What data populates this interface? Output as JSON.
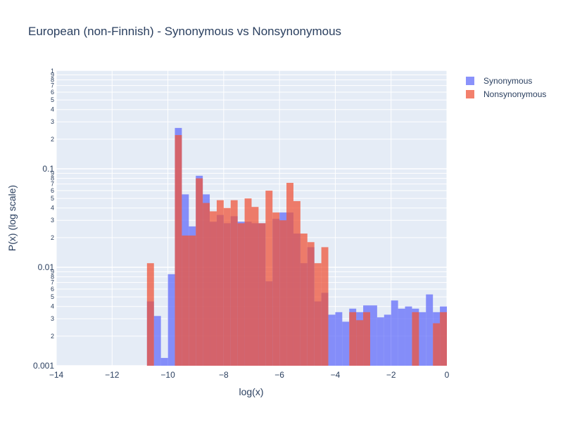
{
  "chart_data": {
    "type": "bar",
    "title": "European (non-Finnish) - Synonymous vs Nonsynonymous",
    "xlabel": "log(x)",
    "ylabel": "P(x) (log scale)",
    "xlim": [
      -14,
      0
    ],
    "ylim": [
      0.001,
      1
    ],
    "y_scale": "log",
    "bin_width": 0.25,
    "x_ticks": [
      -14,
      -12,
      -10,
      -8,
      -6,
      -4,
      -2,
      0
    ],
    "x_tick_labels": [
      "−14",
      "−12",
      "−10",
      "−8",
      "−6",
      "−4",
      "−2",
      "0"
    ],
    "y_major_ticks": [
      {
        "value": 0.001,
        "label": "0.001"
      },
      {
        "value": 0.01,
        "label": "0.01"
      },
      {
        "value": 0.1,
        "label": "0.1"
      },
      {
        "value": 1,
        "label": "1"
      }
    ],
    "y_minor_ticks": [
      {
        "value": 0.002,
        "label": "2"
      },
      {
        "value": 0.003,
        "label": "3"
      },
      {
        "value": 0.004,
        "label": "4"
      },
      {
        "value": 0.005,
        "label": "5"
      },
      {
        "value": 0.006,
        "label": "6"
      },
      {
        "value": 0.007,
        "label": "7"
      },
      {
        "value": 0.008,
        "label": "8"
      },
      {
        "value": 0.009,
        "label": "9"
      },
      {
        "value": 0.02,
        "label": "2"
      },
      {
        "value": 0.03,
        "label": "3"
      },
      {
        "value": 0.04,
        "label": "4"
      },
      {
        "value": 0.05,
        "label": "5"
      },
      {
        "value": 0.06,
        "label": "6"
      },
      {
        "value": 0.07,
        "label": "7"
      },
      {
        "value": 0.08,
        "label": "8"
      },
      {
        "value": 0.09,
        "label": "9"
      },
      {
        "value": 0.2,
        "label": "2"
      },
      {
        "value": 0.3,
        "label": "3"
      },
      {
        "value": 0.4,
        "label": "4"
      },
      {
        "value": 0.5,
        "label": "5"
      },
      {
        "value": 0.6,
        "label": "6"
      },
      {
        "value": 0.7,
        "label": "7"
      },
      {
        "value": 0.8,
        "label": "8"
      },
      {
        "value": 0.9,
        "label": "9"
      }
    ],
    "legend_position": "top-right",
    "grid": true,
    "series": [
      {
        "name": "Synonymous",
        "color": "#636efa",
        "opacity": 0.75,
        "bins": [
          [
            -10.75,
            0.0045
          ],
          [
            -10.5,
            0.0032
          ],
          [
            -10.25,
            0.0012
          ],
          [
            -10.0,
            0.0085
          ],
          [
            -9.75,
            0.26
          ],
          [
            -9.5,
            0.055
          ],
          [
            -9.25,
            0.026
          ],
          [
            -9.0,
            0.085
          ],
          [
            -8.75,
            0.055
          ],
          [
            -8.5,
            0.029
          ],
          [
            -8.25,
            0.034
          ],
          [
            -8.0,
            0.028
          ],
          [
            -7.75,
            0.033
          ],
          [
            -7.5,
            0.029
          ],
          [
            -7.25,
            0.029
          ],
          [
            -7.0,
            0.028
          ],
          [
            -6.75,
            0.028
          ],
          [
            -6.5,
            0.0072
          ],
          [
            -6.25,
            0.031
          ],
          [
            -6.0,
            0.036
          ],
          [
            -5.75,
            0.036
          ],
          [
            -5.5,
            0.022
          ],
          [
            -5.25,
            0.011
          ],
          [
            -5.0,
            0.016
          ],
          [
            -4.75,
            0.0045
          ],
          [
            -4.5,
            0.0055
          ],
          [
            -4.25,
            0.0033
          ],
          [
            -4.0,
            0.0035
          ],
          [
            -3.75,
            0.0028
          ],
          [
            -3.5,
            0.0038
          ],
          [
            -3.25,
            0.0035
          ],
          [
            -3.0,
            0.0041
          ],
          [
            -2.75,
            0.0041
          ],
          [
            -2.5,
            0.0031
          ],
          [
            -2.25,
            0.0033
          ],
          [
            -2.0,
            0.0046
          ],
          [
            -1.75,
            0.0038
          ],
          [
            -1.5,
            0.004
          ],
          [
            -1.25,
            0.0038
          ],
          [
            -1.0,
            0.0035
          ],
          [
            -0.75,
            0.0053
          ],
          [
            -0.5,
            0.0035
          ],
          [
            -0.25,
            0.004
          ]
        ]
      },
      {
        "name": "Nonsynonymous",
        "color": "#ef553b",
        "opacity": 0.75,
        "bins": [
          [
            -10.75,
            0.011
          ],
          [
            -9.75,
            0.22
          ],
          [
            -9.5,
            0.021
          ],
          [
            -9.25,
            0.021
          ],
          [
            -9.0,
            0.08
          ],
          [
            -8.75,
            0.045
          ],
          [
            -8.5,
            0.037
          ],
          [
            -8.25,
            0.048
          ],
          [
            -8.0,
            0.04
          ],
          [
            -7.75,
            0.048
          ],
          [
            -7.5,
            0.028
          ],
          [
            -7.25,
            0.05
          ],
          [
            -7.0,
            0.041
          ],
          [
            -6.75,
            0.028
          ],
          [
            -6.5,
            0.06
          ],
          [
            -6.25,
            0.036
          ],
          [
            -6.0,
            0.03
          ],
          [
            -5.75,
            0.072
          ],
          [
            -5.5,
            0.047
          ],
          [
            -5.25,
            0.022
          ],
          [
            -5.0,
            0.018
          ],
          [
            -4.75,
            0.011
          ],
          [
            -4.5,
            0.016
          ],
          [
            -3.5,
            0.0035
          ],
          [
            -3.25,
            0.0029
          ],
          [
            -3.0,
            0.0035
          ],
          [
            -1.25,
            0.0035
          ],
          [
            -0.5,
            0.0027
          ],
          [
            -0.25,
            0.0035
          ]
        ]
      }
    ]
  }
}
